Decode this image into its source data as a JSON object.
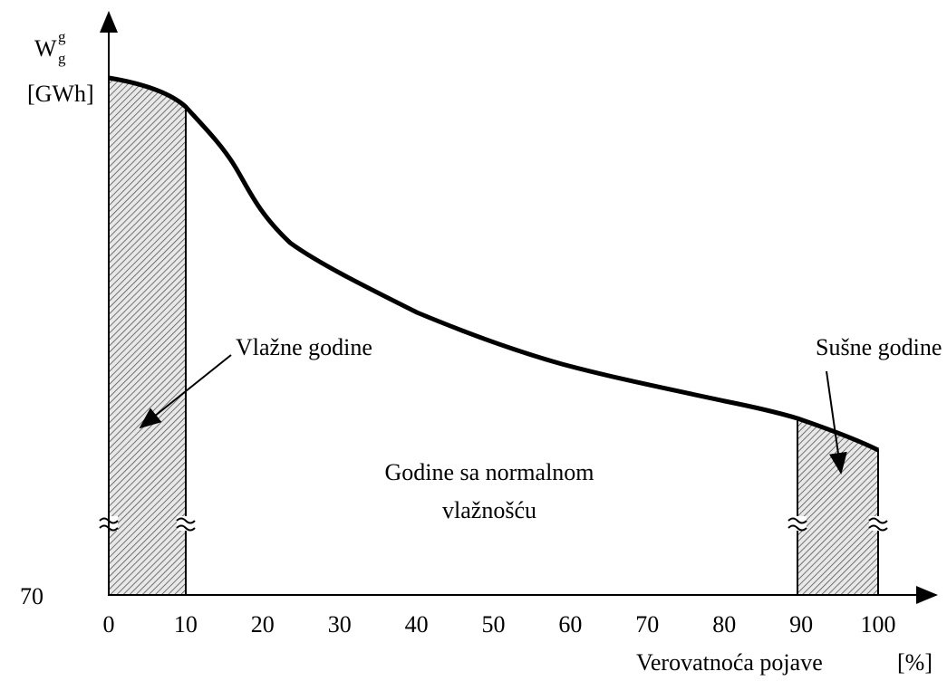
{
  "y_axis": {
    "symbol": "W",
    "superscript": "g",
    "subscript": "g",
    "unit": "[GWh]",
    "tick": "70"
  },
  "x_axis": {
    "ticks": [
      "0",
      "10",
      "20",
      "30",
      "40",
      "50",
      "60",
      "70",
      "80",
      "90",
      "100"
    ],
    "label": "Verovatnoća pojave",
    "unit": "[%]"
  },
  "annotations": {
    "wet": "Vlažne godine",
    "dry": "Sušne godine",
    "normal": [
      "Godine sa normalnom",
      "vlažnošću"
    ]
  }
}
